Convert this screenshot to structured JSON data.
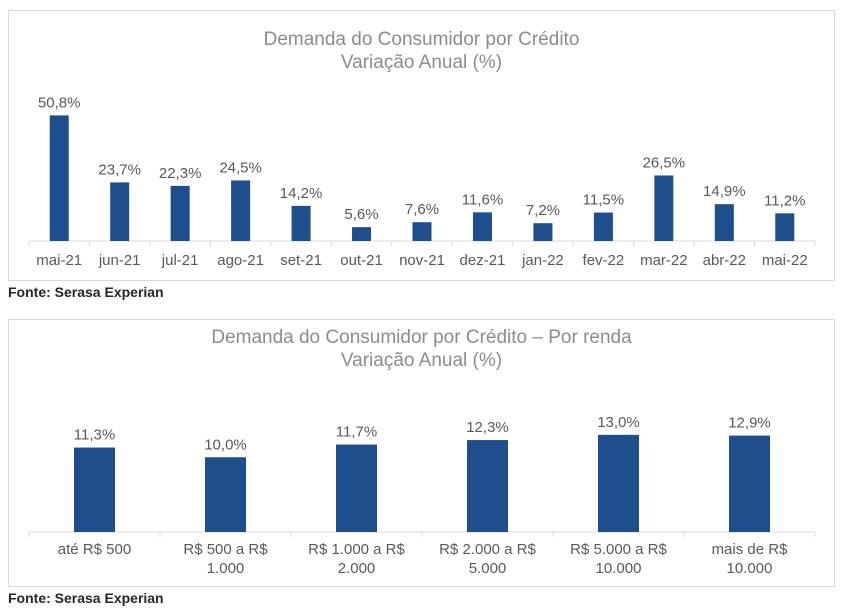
{
  "chart_data": [
    {
      "type": "bar",
      "title": "Demanda do Consumidor por Crédito",
      "subtitle": "Variação Anual (%)",
      "categories": [
        "mai-21",
        "jun-21",
        "jul-21",
        "ago-21",
        "set-21",
        "out-21",
        "nov-21",
        "dez-21",
        "jan-22",
        "fev-22",
        "mar-22",
        "abr-22",
        "mai-22"
      ],
      "values": [
        50.8,
        23.7,
        22.3,
        24.5,
        14.2,
        5.6,
        7.6,
        11.6,
        7.2,
        11.5,
        26.5,
        14.9,
        11.2
      ],
      "data_labels": [
        "50,8%",
        "23,7%",
        "22,3%",
        "24,5%",
        "14,2%",
        "5,6%",
        "7,6%",
        "11,6%",
        "7,2%",
        "11,5%",
        "26,5%",
        "14,9%",
        "11,2%"
      ],
      "ylim": [
        0,
        55
      ],
      "grid": false,
      "bar_color": "#1f4e8c",
      "source": "Fonte: Serasa Experian"
    },
    {
      "type": "bar",
      "title": "Demanda do Consumidor por Crédito – Por renda",
      "subtitle": "Variação Anual (%)",
      "categories": [
        [
          "até R$ 500"
        ],
        [
          "R$ 500 a R$",
          "1.000"
        ],
        [
          "R$ 1.000 a R$",
          "2.000"
        ],
        [
          "R$ 2.000 a R$",
          "5.000"
        ],
        [
          "R$ 5.000 a R$",
          "10.000"
        ],
        [
          "mais de R$",
          "10.000"
        ]
      ],
      "values": [
        11.3,
        10.0,
        11.7,
        12.3,
        13.0,
        12.9
      ],
      "data_labels": [
        "11,3%",
        "10,0%",
        "11,7%",
        "12,3%",
        "13,0%",
        "12,9%"
      ],
      "ylim": [
        0,
        19
      ],
      "grid": false,
      "bar_color": "#1f4e8c",
      "source": "Fonte: Serasa Experian"
    }
  ]
}
